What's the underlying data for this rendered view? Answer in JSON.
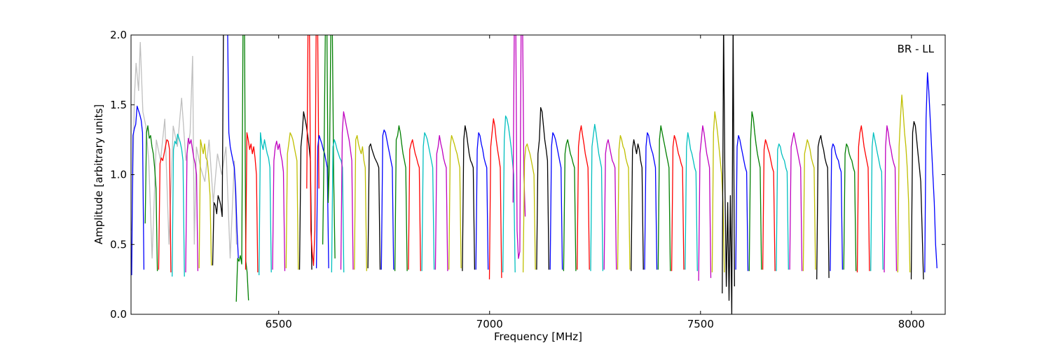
{
  "chart_data": {
    "type": "line",
    "title": "",
    "xlabel": "Frequency [MHz]",
    "ylabel": "Amplitude [arbitrary units]",
    "xlim": [
      6150,
      8080
    ],
    "ylim": [
      0.0,
      2.0
    ],
    "xticks": [
      6500,
      7000,
      7500,
      8000
    ],
    "yticks": [
      0.0,
      0.5,
      1.0,
      1.5,
      2.0
    ],
    "xtick_labels": [
      "6500",
      "7000",
      "7500",
      "8000"
    ],
    "ytick_labels": [
      "0.0",
      "0.5",
      "1.0",
      "1.5",
      "2.0"
    ],
    "annotation": "BR - LL",
    "annotation_position": "top-right",
    "grid": false,
    "legend": "none",
    "channel_width_mhz": 32,
    "gray_background": {
      "color": "#bfbfbf",
      "x": [
        6152,
        6158,
        6162,
        6168,
        6172,
        6178,
        6185,
        6192,
        6200,
        6210,
        6220,
        6230,
        6240,
        6250,
        6260,
        6270,
        6280,
        6290,
        6296,
        6300,
        6305,
        6315,
        6325,
        6335,
        6345,
        6355,
        6365,
        6375,
        6385,
        6395,
        6400
      ],
      "y": [
        0.6,
        1.55,
        1.8,
        1.6,
        1.95,
        1.45,
        1.35,
        1.1,
        0.4,
        1.25,
        1.1,
        1.4,
        0.5,
        1.35,
        1.2,
        1.55,
        1.1,
        1.3,
        1.85,
        0.5,
        1.2,
        1.05,
        0.95,
        1.25,
        0.8,
        1.15,
        1.0,
        1.2,
        0.4,
        1.1,
        0.5
      ]
    },
    "series": [
      {
        "color": "#0000ff",
        "x0": 6150,
        "shape": [
          0.28,
          1.28,
          1.33,
          1.36,
          1.49,
          1.46,
          1.43,
          1.39,
          1.3,
          0.32
        ]
      },
      {
        "color": "#007f00",
        "x0": 6182,
        "shape": [
          0.65,
          1.3,
          1.35,
          1.26,
          1.28,
          1.2,
          1.15,
          1.05,
          0.9,
          0.31
        ]
      },
      {
        "color": "#ff0000",
        "x0": 6214,
        "shape": [
          0.32,
          1.08,
          1.12,
          1.1,
          1.15,
          1.2,
          1.25,
          1.24,
          1.18,
          0.3
        ]
      },
      {
        "color": "#00bfbf",
        "x0": 6246,
        "shape": [
          0.27,
          1.18,
          1.24,
          1.22,
          1.29,
          1.26,
          1.23,
          1.18,
          1.1,
          0.27
        ]
      },
      {
        "color": "#bf00bf",
        "x0": 6278,
        "shape": [
          0.3,
          1.15,
          1.26,
          1.22,
          1.25,
          1.18,
          1.12,
          1.08,
          1.0,
          0.31
        ]
      },
      {
        "color": "#bfbf00",
        "x0": 6310,
        "shape": [
          0.33,
          1.25,
          1.2,
          1.15,
          1.22,
          1.12,
          1.1,
          1.0,
          0.85,
          0.35
        ]
      },
      {
        "color": "#000000",
        "x0": 6342,
        "shape": [
          0.35,
          0.8,
          0.78,
          0.72,
          0.85,
          0.82,
          0.78,
          0.7,
          2.1,
          2.1
        ]
      },
      {
        "color": "#0000ff",
        "x0": 6374,
        "shape": [
          2.1,
          2.1,
          1.3,
          1.2,
          1.15,
          1.1,
          1.05,
          0.9,
          0.6,
          0.4
        ]
      },
      {
        "color": "#007f00",
        "x0": 6398,
        "shape": [
          0.09,
          0.4,
          0.38,
          0.42,
          0.36,
          2.1,
          2.1,
          0.38,
          0.3,
          0.1
        ]
      },
      {
        "color": "#ff0000",
        "x0": 6420,
        "shape": [
          0.32,
          1.3,
          1.25,
          1.18,
          1.22,
          1.15,
          1.2,
          1.12,
          1.0,
          0.3
        ]
      },
      {
        "color": "#00bfbf",
        "x0": 6452,
        "shape": [
          0.28,
          1.3,
          1.22,
          1.18,
          1.25,
          1.2,
          1.15,
          1.12,
          1.05,
          0.3
        ]
      },
      {
        "color": "#bf00bf",
        "x0": 6484,
        "shape": [
          0.32,
          1.1,
          1.2,
          1.24,
          1.18,
          1.22,
          1.15,
          1.1,
          1.02,
          0.31
        ]
      },
      {
        "color": "#bfbf00",
        "x0": 6516,
        "shape": [
          0.33,
          1.15,
          1.22,
          1.3,
          1.28,
          1.25,
          1.2,
          1.15,
          1.1,
          0.32
        ]
      },
      {
        "color": "#000000",
        "x0": 6548,
        "shape": [
          0.32,
          1.2,
          1.3,
          1.45,
          1.4,
          1.35,
          1.28,
          1.2,
          1.1,
          0.32
        ]
      },
      {
        "color": "#ff0000",
        "x0": 6565,
        "shape": [
          0.9,
          2.1,
          2.1,
          0.6,
          0.45,
          0.35,
          0.6,
          2.1,
          2.1,
          0.9
        ]
      },
      {
        "color": "#0000ff",
        "x0": 6588,
        "shape": [
          0.33,
          1.2,
          1.28,
          1.25,
          1.22,
          1.18,
          1.15,
          1.1,
          1.05,
          0.33
        ]
      },
      {
        "color": "#007f00",
        "x0": 6603,
        "shape": [
          0.5,
          1.2,
          2.1,
          2.1,
          0.8,
          1.1,
          2.1,
          2.1,
          1.0,
          0.4
        ]
      },
      {
        "color": "#00bfbf",
        "x0": 6624,
        "shape": [
          0.3,
          1.2,
          1.25,
          1.22,
          1.18,
          1.15,
          1.12,
          1.1,
          1.05,
          0.3
        ]
      },
      {
        "color": "#bf00bf",
        "x0": 6646,
        "shape": [
          0.32,
          1.3,
          1.45,
          1.4,
          1.35,
          1.3,
          1.25,
          1.18,
          1.1,
          0.32
        ]
      },
      {
        "color": "#bfbf00",
        "x0": 6678,
        "shape": [
          0.32,
          1.25,
          1.28,
          1.22,
          1.18,
          1.15,
          1.2,
          1.1,
          1.05,
          0.31
        ]
      },
      {
        "color": "#000000",
        "x0": 6710,
        "shape": [
          0.33,
          1.2,
          1.22,
          1.18,
          1.15,
          1.12,
          1.1,
          1.08,
          1.05,
          0.32
        ]
      },
      {
        "color": "#0000ff",
        "x0": 6742,
        "shape": [
          0.32,
          1.28,
          1.32,
          1.3,
          1.25,
          1.2,
          1.15,
          1.1,
          1.05,
          0.32
        ]
      },
      {
        "color": "#007f00",
        "x0": 6774,
        "shape": [
          0.31,
          1.25,
          1.28,
          1.35,
          1.3,
          1.22,
          1.15,
          1.1,
          1.05,
          0.31
        ]
      },
      {
        "color": "#ff0000",
        "x0": 6806,
        "shape": [
          0.32,
          1.18,
          1.22,
          1.25,
          1.2,
          1.15,
          1.12,
          1.08,
          1.05,
          0.31
        ]
      },
      {
        "color": "#00bfbf",
        "x0": 6838,
        "shape": [
          0.31,
          1.2,
          1.3,
          1.28,
          1.25,
          1.2,
          1.15,
          1.1,
          1.05,
          0.32
        ]
      },
      {
        "color": "#bf00bf",
        "x0": 6870,
        "shape": [
          0.32,
          1.15,
          1.2,
          1.28,
          1.22,
          1.18,
          1.12,
          1.08,
          1.05,
          0.31
        ]
      },
      {
        "color": "#bfbf00",
        "x0": 6902,
        "shape": [
          0.32,
          1.2,
          1.28,
          1.25,
          1.22,
          1.18,
          1.15,
          1.1,
          1.05,
          0.33
        ]
      },
      {
        "color": "#000000",
        "x0": 6934,
        "shape": [
          0.31,
          1.25,
          1.35,
          1.3,
          1.22,
          1.15,
          1.1,
          1.08,
          1.05,
          0.32
        ]
      },
      {
        "color": "#0000ff",
        "x0": 6966,
        "shape": [
          0.32,
          1.18,
          1.3,
          1.28,
          1.22,
          1.18,
          1.12,
          1.08,
          1.05,
          0.32
        ]
      },
      {
        "color": "#ff0000",
        "x0": 6998,
        "shape": [
          0.25,
          1.2,
          1.3,
          1.4,
          1.35,
          1.25,
          1.18,
          1.12,
          1.05,
          0.26
        ]
      },
      {
        "color": "#00bfbf",
        "x0": 7030,
        "shape": [
          0.3,
          1.25,
          1.42,
          1.4,
          1.35,
          1.28,
          1.2,
          1.1,
          1.0,
          0.3
        ]
      },
      {
        "color": "#bf00bf",
        "x0": 7054,
        "shape": [
          0.8,
          2.1,
          2.1,
          0.6,
          0.4,
          0.45,
          2.1,
          2.1,
          1.0,
          0.7
        ]
      },
      {
        "color": "#bfbf00",
        "x0": 7078,
        "shape": [
          0.3,
          1.1,
          1.2,
          1.22,
          1.18,
          1.15,
          1.1,
          1.05,
          1.0,
          0.32
        ]
      },
      {
        "color": "#000000",
        "x0": 7110,
        "shape": [
          0.32,
          1.15,
          1.25,
          1.48,
          1.45,
          1.35,
          1.25,
          1.18,
          1.1,
          0.32
        ]
      },
      {
        "color": "#0000ff",
        "x0": 7142,
        "shape": [
          0.32,
          1.2,
          1.3,
          1.28,
          1.25,
          1.2,
          1.15,
          1.1,
          1.05,
          0.32
        ]
      },
      {
        "color": "#007f00",
        "x0": 7174,
        "shape": [
          0.31,
          1.15,
          1.22,
          1.25,
          1.2,
          1.15,
          1.12,
          1.08,
          1.05,
          0.31
        ]
      },
      {
        "color": "#ff0000",
        "x0": 7206,
        "shape": [
          0.32,
          1.2,
          1.3,
          1.35,
          1.28,
          1.22,
          1.15,
          1.1,
          1.05,
          0.32
        ]
      },
      {
        "color": "#00bfbf",
        "x0": 7238,
        "shape": [
          0.31,
          1.2,
          1.28,
          1.36,
          1.3,
          1.22,
          1.15,
          1.1,
          1.05,
          0.31
        ]
      },
      {
        "color": "#bf00bf",
        "x0": 7270,
        "shape": [
          0.32,
          1.15,
          1.22,
          1.25,
          1.2,
          1.15,
          1.1,
          1.08,
          1.05,
          0.32
        ]
      },
      {
        "color": "#bfbf00",
        "x0": 7302,
        "shape": [
          0.32,
          1.18,
          1.28,
          1.25,
          1.2,
          1.18,
          1.12,
          1.08,
          1.05,
          0.32
        ]
      },
      {
        "color": "#000000",
        "x0": 7334,
        "shape": [
          0.31,
          1.18,
          1.25,
          1.2,
          1.15,
          1.22,
          1.18,
          1.1,
          1.05,
          0.32
        ]
      },
      {
        "color": "#0000ff",
        "x0": 7366,
        "shape": [
          0.32,
          1.2,
          1.3,
          1.28,
          1.22,
          1.18,
          1.15,
          1.1,
          1.05,
          0.32
        ]
      },
      {
        "color": "#007f00",
        "x0": 7398,
        "shape": [
          0.32,
          1.25,
          1.35,
          1.3,
          1.25,
          1.2,
          1.15,
          1.1,
          1.05,
          0.31
        ]
      },
      {
        "color": "#ff0000",
        "x0": 7430,
        "shape": [
          0.31,
          1.2,
          1.28,
          1.25,
          1.2,
          1.15,
          1.12,
          1.08,
          1.05,
          0.32
        ]
      },
      {
        "color": "#00bfbf",
        "x0": 7462,
        "shape": [
          0.32,
          1.2,
          1.3,
          1.25,
          1.18,
          1.15,
          1.1,
          1.05,
          1.02,
          0.31
        ]
      },
      {
        "color": "#bf00bf",
        "x0": 7494,
        "shape": [
          0.24,
          1.15,
          1.25,
          1.35,
          1.3,
          1.22,
          1.15,
          1.1,
          1.05,
          0.26
        ]
      },
      {
        "color": "#bfbf00",
        "x0": 7526,
        "shape": [
          0.3,
          1.3,
          1.45,
          1.38,
          1.3,
          1.2,
          1.1,
          1.0,
          0.8,
          0.3
        ]
      },
      {
        "color": "#000000",
        "x0": 7550,
        "shape": [
          0.15,
          2.1,
          0.9,
          0.2,
          0.8,
          0.1,
          0.85,
          0.0,
          2.1,
          0.2
        ]
      },
      {
        "color": "#0000ff",
        "x0": 7582,
        "shape": [
          0.32,
          1.2,
          1.28,
          1.25,
          1.2,
          1.15,
          1.1,
          1.05,
          1.02,
          0.31
        ]
      },
      {
        "color": "#007f00",
        "x0": 7614,
        "shape": [
          0.31,
          1.25,
          1.45,
          1.4,
          1.3,
          1.22,
          1.15,
          1.1,
          1.05,
          0.32
        ]
      },
      {
        "color": "#ff0000",
        "x0": 7646,
        "shape": [
          0.32,
          1.18,
          1.25,
          1.22,
          1.18,
          1.15,
          1.1,
          1.05,
          1.02,
          0.31
        ]
      },
      {
        "color": "#00bfbf",
        "x0": 7678,
        "shape": [
          0.31,
          1.18,
          1.22,
          1.2,
          1.15,
          1.12,
          1.1,
          1.05,
          1.02,
          0.32
        ]
      },
      {
        "color": "#bf00bf",
        "x0": 7710,
        "shape": [
          0.32,
          1.2,
          1.25,
          1.3,
          1.25,
          1.2,
          1.15,
          1.1,
          1.05,
          0.31
        ]
      },
      {
        "color": "#bfbf00",
        "x0": 7742,
        "shape": [
          0.31,
          1.15,
          1.2,
          1.25,
          1.22,
          1.18,
          1.12,
          1.08,
          1.05,
          0.32
        ]
      },
      {
        "color": "#000000",
        "x0": 7774,
        "shape": [
          0.25,
          1.2,
          1.25,
          1.28,
          1.22,
          1.18,
          1.12,
          1.08,
          1.05,
          0.26
        ]
      },
      {
        "color": "#0000ff",
        "x0": 7806,
        "shape": [
          0.31,
          1.18,
          1.22,
          1.2,
          1.15,
          1.12,
          1.1,
          1.05,
          1.02,
          0.32
        ]
      },
      {
        "color": "#007f00",
        "x0": 7838,
        "shape": [
          0.32,
          1.15,
          1.22,
          1.2,
          1.15,
          1.12,
          1.1,
          1.05,
          1.02,
          0.31
        ]
      },
      {
        "color": "#ff0000",
        "x0": 7870,
        "shape": [
          0.3,
          1.2,
          1.3,
          1.35,
          1.28,
          1.2,
          1.15,
          1.1,
          1.05,
          0.31
        ]
      },
      {
        "color": "#00bfbf",
        "x0": 7902,
        "shape": [
          0.31,
          1.2,
          1.3,
          1.25,
          1.2,
          1.15,
          1.1,
          1.05,
          1.02,
          0.32
        ]
      },
      {
        "color": "#bf00bf",
        "x0": 7934,
        "shape": [
          0.3,
          1.2,
          1.35,
          1.3,
          1.22,
          1.18,
          1.12,
          1.08,
          1.05,
          0.31
        ]
      },
      {
        "color": "#bfbf00",
        "x0": 7966,
        "shape": [
          0.3,
          1.2,
          1.4,
          1.57,
          1.45,
          1.3,
          1.2,
          1.05,
          0.8,
          0.3
        ]
      },
      {
        "color": "#000000",
        "x0": 7998,
        "shape": [
          0.25,
          1.3,
          1.38,
          1.35,
          1.25,
          1.15,
          1.05,
          0.95,
          0.6,
          0.25
        ]
      },
      {
        "color": "#0000ff",
        "x0": 8030,
        "shape": [
          0.3,
          1.4,
          1.73,
          1.6,
          1.4,
          1.2,
          1.0,
          0.8,
          0.5,
          0.33
        ]
      }
    ]
  }
}
